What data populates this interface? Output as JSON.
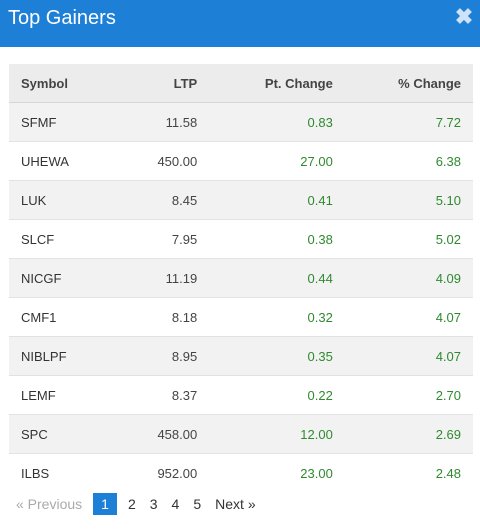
{
  "modal": {
    "title": "Top Gainers",
    "close_glyph": "✖"
  },
  "table": {
    "headers": [
      "Symbol",
      "LTP",
      "Pt. Change",
      "% Change"
    ],
    "rows": [
      {
        "symbol": "SFMF",
        "ltp": "11.58",
        "pt_change": "0.83",
        "pct_change": "7.72"
      },
      {
        "symbol": "UHEWA",
        "ltp": "450.00",
        "pt_change": "27.00",
        "pct_change": "6.38"
      },
      {
        "symbol": "LUK",
        "ltp": "8.45",
        "pt_change": "0.41",
        "pct_change": "5.10"
      },
      {
        "symbol": "SLCF",
        "ltp": "7.95",
        "pt_change": "0.38",
        "pct_change": "5.02"
      },
      {
        "symbol": "NICGF",
        "ltp": "11.19",
        "pt_change": "0.44",
        "pct_change": "4.09"
      },
      {
        "symbol": "CMF1",
        "ltp": "8.18",
        "pt_change": "0.32",
        "pct_change": "4.07"
      },
      {
        "symbol": "NIBLPF",
        "ltp": "8.95",
        "pt_change": "0.35",
        "pct_change": "4.07"
      },
      {
        "symbol": "LEMF",
        "ltp": "8.37",
        "pt_change": "0.22",
        "pct_change": "2.70"
      },
      {
        "symbol": "SPC",
        "ltp": "458.00",
        "pt_change": "12.00",
        "pct_change": "2.69"
      },
      {
        "symbol": "ILBS",
        "ltp": "952.00",
        "pt_change": "23.00",
        "pct_change": "2.48"
      }
    ]
  },
  "pagination": {
    "prev_label": "« Previous",
    "pages": [
      "1",
      "2",
      "3",
      "4",
      "5"
    ],
    "current": "1",
    "next_label": "Next »"
  },
  "colors": {
    "header_bg": "#1e7fd6",
    "positive": "#2f8a2f",
    "active_page": "#1e7fd6"
  }
}
